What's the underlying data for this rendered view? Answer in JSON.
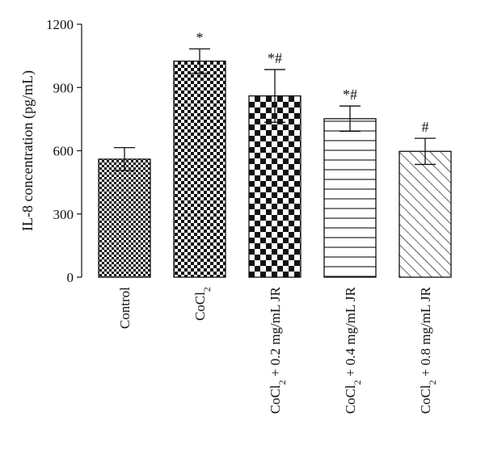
{
  "chart_data": {
    "type": "bar",
    "ylabel": "IL-8 concentration (pg/mL)",
    "xlabel": "",
    "ylim": [
      0,
      1200
    ],
    "yticks": [
      0,
      300,
      600,
      900,
      1200
    ],
    "grid": false,
    "categories": [
      {
        "label": "Control",
        "main": "Control",
        "sub": "",
        "tail": "",
        "pattern": "checker-fine"
      },
      {
        "label": "CoCl2",
        "main": "CoCl",
        "sub": "2",
        "tail": "",
        "pattern": "checker-medium"
      },
      {
        "label": "CoCl2 + 0.2 mg/mL JR",
        "main": "CoCl",
        "sub": "2",
        "tail": " + 0.2 mg/mL JR",
        "pattern": "checker-coarse"
      },
      {
        "label": "CoCl2 + 0.4 mg/mL JR",
        "main": "CoCl",
        "sub": "2",
        "tail": " + 0.4 mg/mL JR",
        "pattern": "horizontal-lines"
      },
      {
        "label": "CoCl2 + 0.8 mg/mL JR",
        "main": "CoCl",
        "sub": "2",
        "tail": " + 0.8 mg/mL JR",
        "pattern": "diagonal-lines"
      }
    ],
    "values": [
      560,
      1025,
      860,
      752,
      597
    ],
    "errors": [
      55,
      58,
      125,
      60,
      62
    ],
    "annotations": [
      "",
      "*",
      "*#",
      "*#",
      "#"
    ]
  }
}
